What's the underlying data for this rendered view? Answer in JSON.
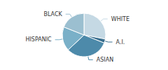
{
  "chart_data": {
    "type": "pie",
    "categories": [
      "WHITE",
      "A.I.",
      "ASIAN",
      "HISPANIC",
      "BLACK"
    ],
    "values": [
      28,
      3,
      32,
      18,
      19
    ],
    "colors": [
      "#c5d9e4",
      "#3a6f8f",
      "#4d8aaa",
      "#7ab0c8",
      "#9bbfd0"
    ]
  }
}
